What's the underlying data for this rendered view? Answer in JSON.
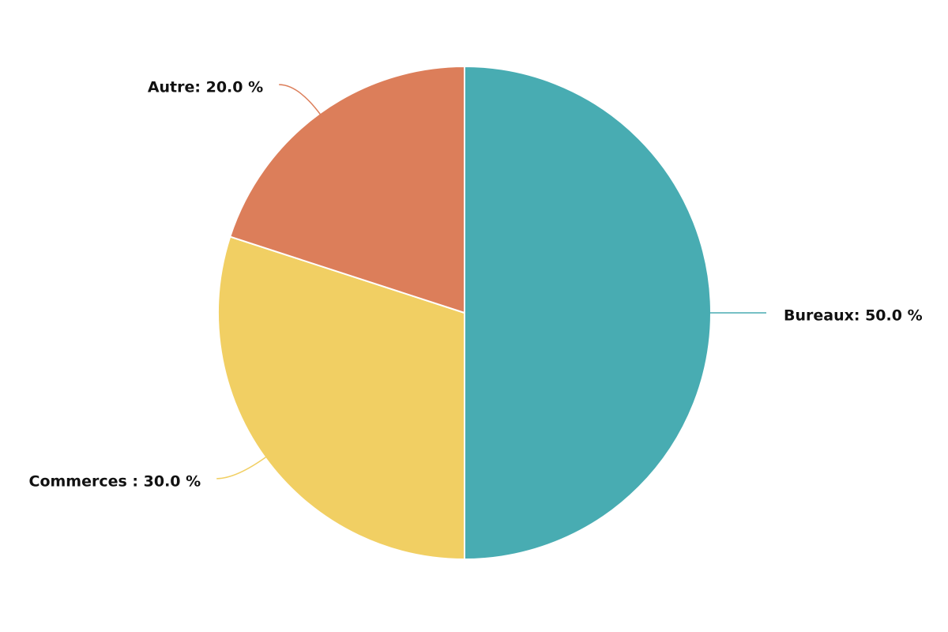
{
  "chart_data": {
    "type": "pie",
    "values": [
      50,
      30,
      20
    ],
    "value_labels": [
      "Bureaux: 50.0 %",
      "Commerces : 30.0 %",
      "Autre: 20.0 %"
    ],
    "colors": [
      "#48acb2",
      "#f1cf63",
      "#dc7e5a"
    ]
  }
}
